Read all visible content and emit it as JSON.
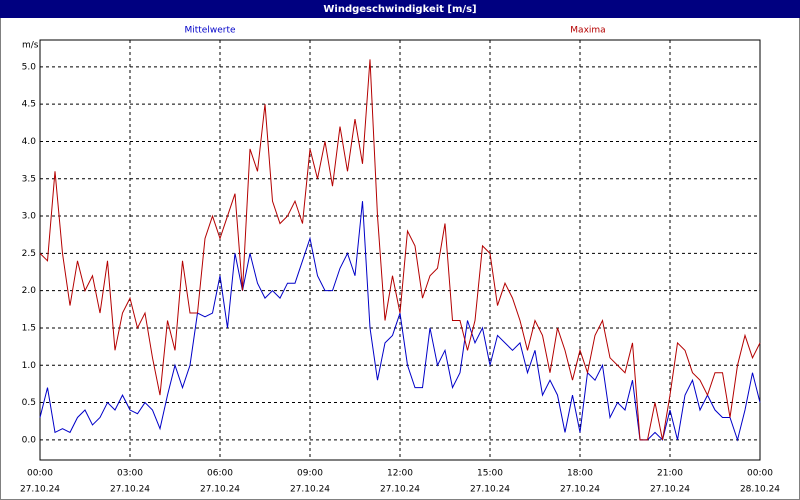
{
  "chart_data": {
    "type": "line",
    "title": "Windgeschwindigkeit [m/s]",
    "y_unit": "m/s",
    "x": [
      0,
      0.25,
      0.5,
      0.75,
      1,
      1.25,
      1.5,
      1.75,
      2,
      2.25,
      2.5,
      2.75,
      3,
      3.25,
      3.5,
      3.75,
      4,
      4.25,
      4.5,
      4.75,
      5,
      5.25,
      5.5,
      5.75,
      6,
      6.25,
      6.5,
      6.75,
      7,
      7.25,
      7.5,
      7.75,
      8,
      8.25,
      8.5,
      8.75,
      9,
      9.25,
      9.5,
      9.75,
      10,
      10.25,
      10.5,
      10.75,
      11,
      11.25,
      11.5,
      11.75,
      12,
      12.25,
      12.5,
      12.75,
      13,
      13.25,
      13.5,
      13.75,
      14,
      14.25,
      14.5,
      14.75,
      15,
      15.25,
      15.5,
      15.75,
      16,
      16.25,
      16.5,
      16.75,
      17,
      17.25,
      17.5,
      17.75,
      18,
      18.25,
      18.5,
      18.75,
      19,
      19.25,
      19.5,
      19.75,
      20,
      20.25,
      20.5,
      20.75,
      21,
      21.25,
      21.5,
      21.75,
      22,
      22.25,
      22.5,
      22.75,
      23,
      23.25,
      23.5,
      23.75,
      24
    ],
    "series": [
      {
        "name": "Mittelwerte",
        "color": "#0000c8",
        "values": [
          0.3,
          0.7,
          0.1,
          0.15,
          0.1,
          0.3,
          0.4,
          0.2,
          0.3,
          0.5,
          0.4,
          0.6,
          0.4,
          0.35,
          0.5,
          0.4,
          0.15,
          0.6,
          1.0,
          0.7,
          1.0,
          1.7,
          1.65,
          1.7,
          2.2,
          1.5,
          2.5,
          2.0,
          2.5,
          2.1,
          1.9,
          2.0,
          1.9,
          2.1,
          2.1,
          2.4,
          2.7,
          2.2,
          2.0,
          2.0,
          2.3,
          2.5,
          2.2,
          3.2,
          1.5,
          0.8,
          1.3,
          1.4,
          1.7,
          1.0,
          0.7,
          0.7,
          1.5,
          1.0,
          1.2,
          0.7,
          0.9,
          1.6,
          1.3,
          1.5,
          1.0,
          1.4,
          1.3,
          1.2,
          1.3,
          0.9,
          1.2,
          0.6,
          0.8,
          0.6,
          0.1,
          0.6,
          0.1,
          0.9,
          0.8,
          1.0,
          0.3,
          0.5,
          0.4,
          0.8,
          0.0,
          0.0,
          0.1,
          0.0,
          0.4,
          0.0,
          0.6,
          0.8,
          0.4,
          0.6,
          0.4,
          0.3,
          0.3,
          0.0,
          0.4,
          0.9,
          0.5
        ]
      },
      {
        "name": "Maxima",
        "color": "#b40000",
        "values": [
          2.5,
          2.4,
          3.6,
          2.5,
          1.8,
          2.4,
          2.0,
          2.2,
          1.7,
          2.4,
          1.2,
          1.7,
          1.9,
          1.5,
          1.7,
          1.1,
          0.6,
          1.6,
          1.2,
          2.4,
          1.7,
          1.7,
          2.7,
          3.0,
          2.7,
          3.0,
          3.3,
          2.0,
          3.9,
          3.6,
          4.5,
          3.2,
          2.9,
          3.0,
          3.2,
          2.9,
          3.9,
          3.5,
          4.0,
          3.4,
          4.2,
          3.6,
          4.3,
          3.7,
          5.1,
          3.0,
          1.6,
          2.2,
          1.7,
          2.8,
          2.6,
          1.9,
          2.2,
          2.3,
          2.9,
          1.6,
          1.6,
          1.2,
          1.6,
          2.6,
          2.5,
          1.8,
          2.1,
          1.9,
          1.6,
          1.2,
          1.6,
          1.4,
          0.9,
          1.5,
          1.2,
          0.8,
          1.2,
          0.9,
          1.4,
          1.6,
          1.1,
          1.0,
          0.9,
          1.3,
          0.0,
          0.0,
          0.5,
          0.0,
          0.6,
          1.3,
          1.2,
          0.9,
          0.8,
          0.6,
          0.9,
          0.9,
          0.3,
          1.0,
          1.4,
          1.1,
          1.3
        ]
      }
    ],
    "xlim": [
      0,
      24
    ],
    "xticks": [
      {
        "value": 0,
        "label": "00:00"
      },
      {
        "value": 3,
        "label": "03:00"
      },
      {
        "value": 6,
        "label": "06:00"
      },
      {
        "value": 9,
        "label": "09:00"
      },
      {
        "value": 12,
        "label": "12:00"
      },
      {
        "value": 15,
        "label": "15:00"
      },
      {
        "value": 18,
        "label": "18:00"
      },
      {
        "value": 21,
        "label": "21:00"
      },
      {
        "value": 24,
        "label": "00:00"
      }
    ],
    "xtick_dates": [
      "27.10.24",
      "27.10.24",
      "27.10.24",
      "27.10.24",
      "27.10.24",
      "27.10.24",
      "27.10.24",
      "27.10.24",
      "28.10.24"
    ],
    "ylim": [
      -0.27,
      5.36
    ],
    "yticks": [
      {
        "value": 0,
        "label": "0.0"
      },
      {
        "value": 0.5,
        "label": "0.5"
      },
      {
        "value": 1,
        "label": "1.0"
      },
      {
        "value": 1.5,
        "label": "1.5"
      },
      {
        "value": 2,
        "label": "2.0"
      },
      {
        "value": 2.5,
        "label": "2.5"
      },
      {
        "value": 3,
        "label": "3.0"
      },
      {
        "value": 3.5,
        "label": "3.5"
      },
      {
        "value": 4,
        "label": "4.0"
      },
      {
        "value": 4.5,
        "label": "4.5"
      },
      {
        "value": 5,
        "label": "5.0"
      }
    ],
    "grid": true
  }
}
